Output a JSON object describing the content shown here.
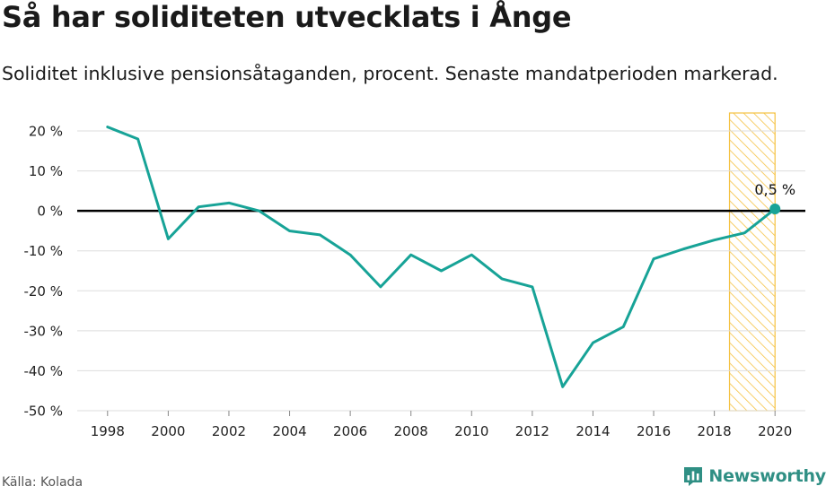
{
  "header": {
    "title": "Så har soliditeten utvecklats i Ånge",
    "subtitle": "Soliditet inklusive pensionsåtaganden, procent. Senaste mandatperioden markerad."
  },
  "footer": {
    "source": "Källa: Kolada",
    "brand": "Newsworthy"
  },
  "colors": {
    "line": "#17a397",
    "highlight": "#f5c242",
    "zero_line": "#000000",
    "grid": "#dddddd"
  },
  "chart_data": {
    "type": "line",
    "title": "Så har soliditeten utvecklats i Ånge",
    "subtitle": "Soliditet inklusive pensionsåtaganden, procent. Senaste mandatperioden markerad.",
    "xlabel": "",
    "ylabel": "",
    "x": [
      1998,
      1999,
      2000,
      2001,
      2002,
      2003,
      2004,
      2005,
      2006,
      2007,
      2008,
      2009,
      2010,
      2011,
      2012,
      2013,
      2014,
      2015,
      2016,
      2017,
      2018,
      2019,
      2020
    ],
    "series": [
      {
        "name": "Soliditet",
        "values": [
          21,
          18,
          -7,
          1,
          2,
          0,
          -5,
          -6,
          -11,
          -19,
          -11,
          -15,
          -11,
          -17,
          -19,
          -44,
          -33,
          -29,
          -12,
          -9.5,
          -7.3,
          -5.5,
          0.5
        ]
      }
    ],
    "xlim": [
      1997,
      2021
    ],
    "ylim": [
      -50,
      24.5
    ],
    "x_ticks": [
      1998,
      2000,
      2002,
      2004,
      2006,
      2008,
      2010,
      2012,
      2014,
      2016,
      2018,
      2020
    ],
    "y_ticks": [
      20,
      10,
      0,
      -10,
      -20,
      -30,
      -40,
      -50
    ],
    "y_tick_labels": [
      "20 %",
      "10 %",
      "0 %",
      "-10 %",
      "-20 %",
      "-30 %",
      "-40 %",
      "-50 %"
    ],
    "grid": true,
    "highlight_range": [
      2018.5,
      2020
    ],
    "annotation": {
      "x": 2020,
      "y": 0.5,
      "text": "0,5 %"
    }
  }
}
